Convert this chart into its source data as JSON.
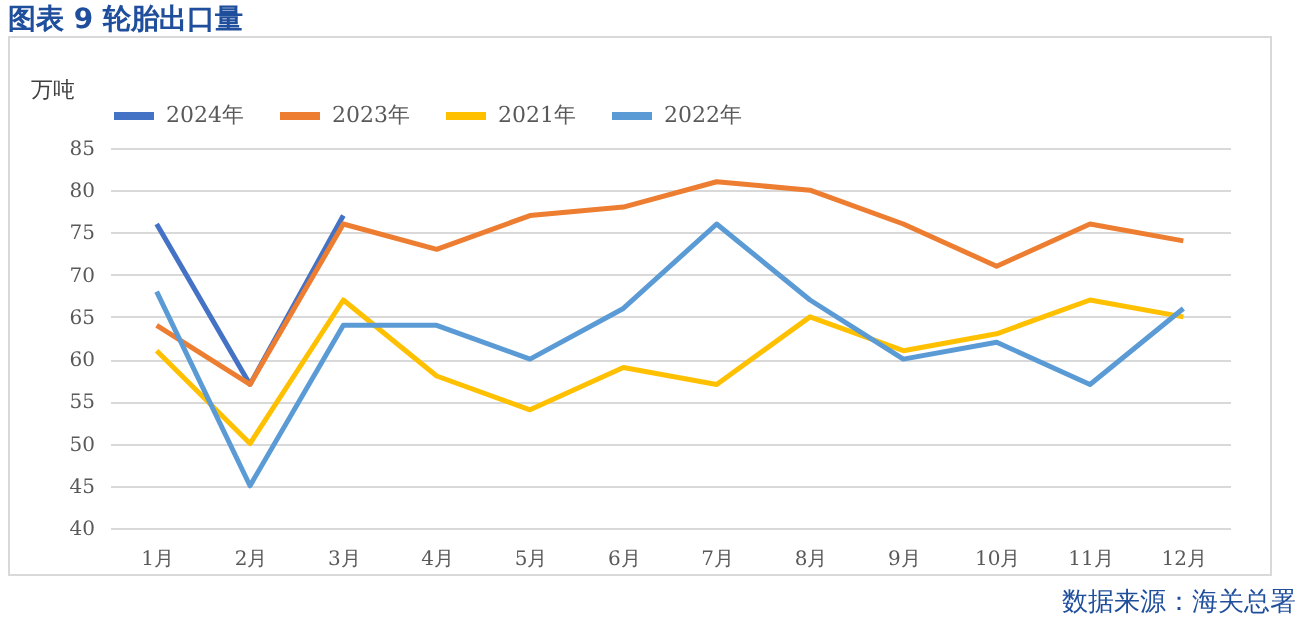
{
  "chart_data": {
    "type": "line",
    "title": "图表 9  轮胎出口量",
    "ylabel": "万吨",
    "annotations": [
      "数据来源：海关总署"
    ],
    "categories": [
      "1月",
      "2月",
      "3月",
      "4月",
      "5月",
      "6月",
      "7月",
      "8月",
      "9月",
      "10月",
      "11月",
      "12月"
    ],
    "ylim": [
      40,
      85
    ],
    "yticks": [
      40,
      45,
      50,
      55,
      60,
      65,
      70,
      75,
      80,
      85
    ],
    "grid": "y",
    "legend": "top",
    "marker": "none",
    "series": [
      {
        "name": "2024年",
        "color": "#4472c4",
        "values": [
          76,
          57,
          77,
          null,
          null,
          null,
          null,
          null,
          null,
          null,
          null,
          null
        ]
      },
      {
        "name": "2023年",
        "color": "#ed7d31",
        "values": [
          64,
          57,
          76,
          73,
          77,
          78,
          81,
          80,
          76,
          71,
          76,
          74
        ]
      },
      {
        "name": "2021年",
        "color": "#ffc000",
        "values": [
          61,
          50,
          67,
          58,
          54,
          59,
          57,
          65,
          61,
          63,
          67,
          65
        ]
      },
      {
        "name": "2022年",
        "color": "#5b9bd5",
        "values": [
          68,
          45,
          64,
          64,
          60,
          66,
          76,
          67,
          60,
          62,
          57,
          66
        ]
      }
    ]
  }
}
